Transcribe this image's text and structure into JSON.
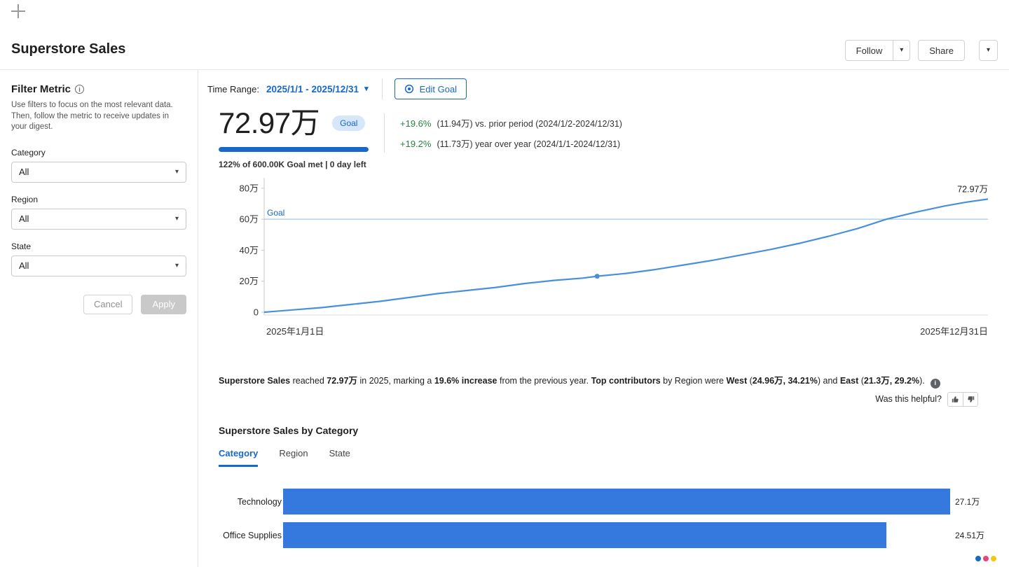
{
  "header": {
    "title": "Superstore Sales",
    "follow_label": "Follow",
    "share_label": "Share"
  },
  "icons": {
    "caret_down": "▾",
    "info_letter": "i"
  },
  "sidebar": {
    "title": "Filter Metric",
    "description": "Use filters to focus on the most relevant data. Then, follow the metric to receive updates in your digest.",
    "filters": [
      {
        "label": "Category",
        "value": "All"
      },
      {
        "label": "Region",
        "value": "All"
      },
      {
        "label": "State",
        "value": "All"
      }
    ],
    "cancel_label": "Cancel",
    "apply_label": "Apply"
  },
  "toolbar": {
    "time_range_label": "Time Range:",
    "time_range_value": "2025/1/1 - 2025/12/31",
    "edit_goal_label": "Edit Goal"
  },
  "kpi": {
    "value": "72.97万",
    "goal_badge": "Goal",
    "progress_percent": 100,
    "goal_progress_text": "122% of 600.00K Goal met | 0 day left",
    "comparisons": [
      {
        "delta": "+19.6%",
        "detail": "(11.94万) vs. prior period (2024/1/2-2024/12/31)"
      },
      {
        "delta": "+19.2%",
        "detail": "(11.73万) year over year (2024/1/1-2024/12/31)"
      }
    ]
  },
  "chart_data": [
    {
      "type": "line",
      "x_start_label": "2025年1月1日",
      "x_end_label": "2025年12月31日",
      "y_ticks": [
        {
          "label": "80万",
          "value": 80
        },
        {
          "label": "60万",
          "value": 60
        },
        {
          "label": "40万",
          "value": 40
        },
        {
          "label": "20万",
          "value": 20
        },
        {
          "label": "0",
          "value": 0
        }
      ],
      "ylim": [
        0,
        84
      ],
      "goal": {
        "label": "Goal",
        "value": 60
      },
      "end_label": "72.97万",
      "marker_index": 12,
      "x": [
        0,
        0.04,
        0.08,
        0.12,
        0.16,
        0.2,
        0.24,
        0.28,
        0.32,
        0.36,
        0.4,
        0.44,
        0.46,
        0.5,
        0.54,
        0.58,
        0.62,
        0.66,
        0.7,
        0.74,
        0.78,
        0.82,
        0.86,
        0.9,
        0.94,
        0.97,
        1.0
      ],
      "y": [
        0,
        1.5,
        3,
        5,
        7,
        9.5,
        12,
        14,
        16,
        18.5,
        20.5,
        22,
        23.2,
        25,
        27.5,
        30.5,
        33.5,
        37,
        40.5,
        44.5,
        49,
        54,
        60,
        64.5,
        68.5,
        71,
        72.97
      ],
      "line_color": "#4a90d9",
      "goal_line_color": "#a3c9ee"
    },
    {
      "type": "bar",
      "title": "Superstore Sales by Category",
      "categories": [
        "Technology",
        "Office Supplies"
      ],
      "values": [
        27.1,
        24.51
      ],
      "value_labels": [
        "27.1万",
        "24.51万"
      ],
      "xmax": 27.1,
      "bar_color": "#3579de"
    }
  ],
  "insight": {
    "segments": [
      {
        "text": "Superstore Sales",
        "bold": true
      },
      {
        "text": " reached ",
        "bold": false
      },
      {
        "text": "72.97万",
        "bold": true
      },
      {
        "text": " in 2025, marking a ",
        "bold": false
      },
      {
        "text": "19.6% increase",
        "bold": true
      },
      {
        "text": " from the previous year. ",
        "bold": false
      },
      {
        "text": "Top contributors",
        "bold": true
      },
      {
        "text": " by Region were ",
        "bold": false
      },
      {
        "text": "West",
        "bold": true
      },
      {
        "text": " (",
        "bold": false
      },
      {
        "text": "24.96万, 34.21%",
        "bold": true
      },
      {
        "text": ") and ",
        "bold": false
      },
      {
        "text": "East",
        "bold": true
      },
      {
        "text": " (",
        "bold": false
      },
      {
        "text": "21.3万, 29.2%",
        "bold": true
      },
      {
        "text": ").",
        "bold": false
      }
    ],
    "helpful_label": "Was this helpful?"
  },
  "breakdown": {
    "title": "Superstore Sales by Category",
    "tabs": [
      {
        "label": "Category",
        "active": true
      },
      {
        "label": "Region",
        "active": false
      },
      {
        "label": "State",
        "active": false
      }
    ]
  },
  "colors": {
    "accent_blue": "#1768c9",
    "positive_green": "#288143",
    "goal_pill_bg": "#d7e7fa",
    "bar_blue": "#3579de",
    "line_blue": "#4a90d9"
  },
  "footer": {
    "dot_colors": [
      "#1768c9",
      "#e8447f",
      "#f3c61a"
    ]
  }
}
